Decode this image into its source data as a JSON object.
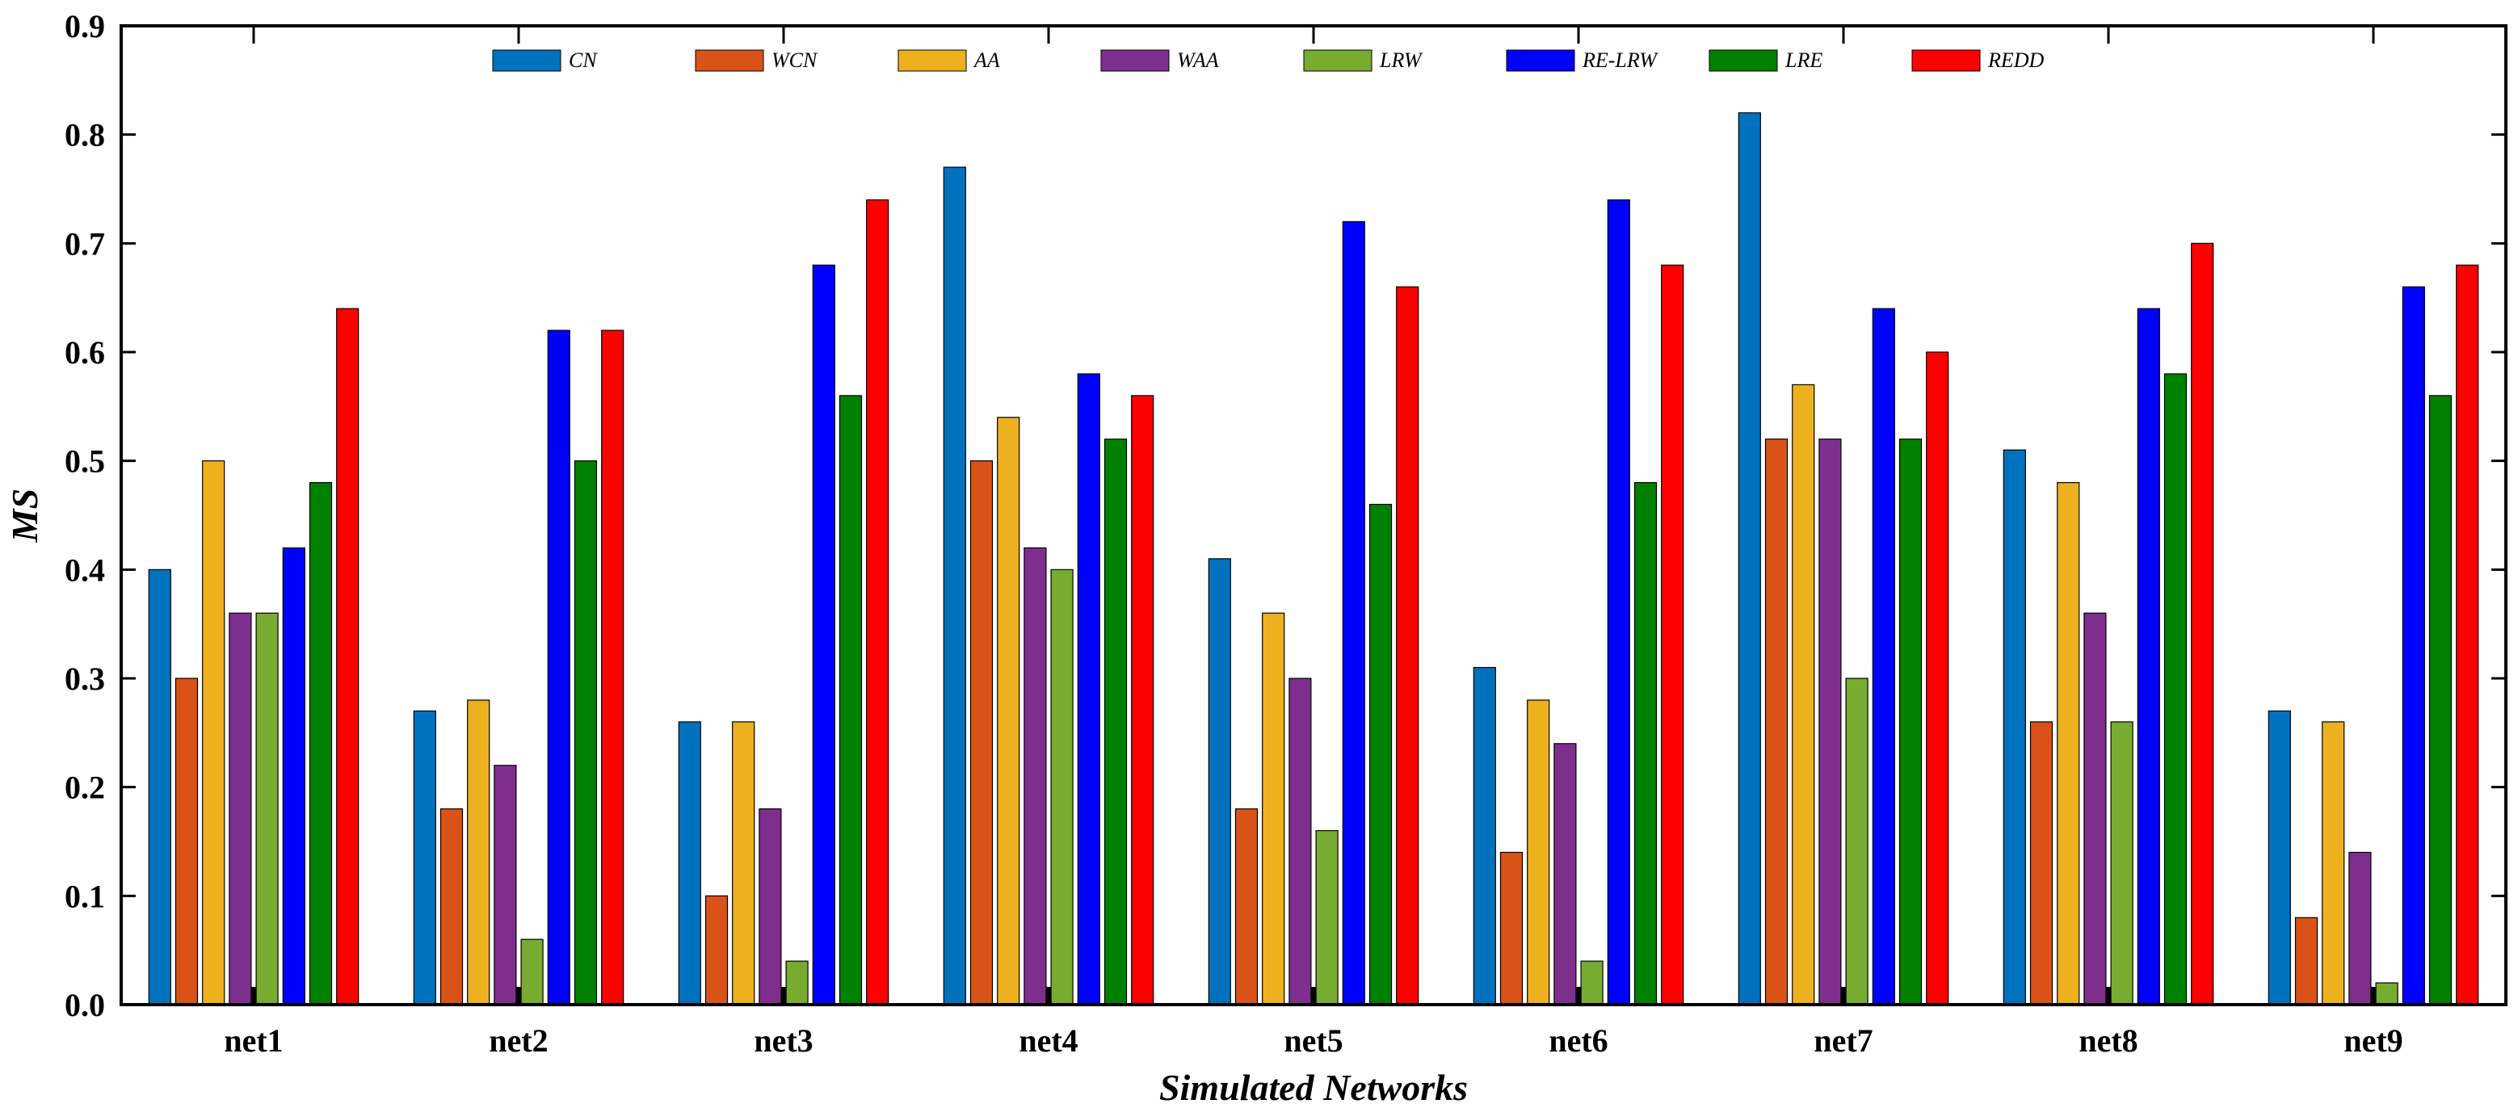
{
  "chart_data": {
    "type": "bar",
    "title": "",
    "xlabel": "Simulated Networks",
    "ylabel": "MS",
    "ylim": [
      0,
      0.9
    ],
    "yticks": [
      "0.0",
      "0.1",
      "0.2",
      "0.3",
      "0.4",
      "0.5",
      "0.6",
      "0.7",
      "0.8",
      "0.9"
    ],
    "legend_position": "top",
    "categories": [
      "net1",
      "net2",
      "net3",
      "net4",
      "net5",
      "net6",
      "net7",
      "net8",
      "net9"
    ],
    "series": [
      {
        "name": "CN",
        "color": "#0072BD",
        "values": [
          0.4,
          0.27,
          0.26,
          0.77,
          0.41,
          0.31,
          0.82,
          0.51,
          0.27
        ]
      },
      {
        "name": "WCN",
        "color": "#D95319",
        "values": [
          0.3,
          0.18,
          0.1,
          0.5,
          0.18,
          0.14,
          0.52,
          0.26,
          0.08
        ]
      },
      {
        "name": "AA",
        "color": "#EDB120",
        "values": [
          0.5,
          0.28,
          0.26,
          0.54,
          0.36,
          0.28,
          0.57,
          0.48,
          0.26
        ]
      },
      {
        "name": "WAA",
        "color": "#7E2F8E",
        "values": [
          0.36,
          0.22,
          0.18,
          0.42,
          0.3,
          0.24,
          0.52,
          0.36,
          0.14
        ]
      },
      {
        "name": "LRW",
        "color": "#77AC30",
        "values": [
          0.36,
          0.06,
          0.04,
          0.4,
          0.16,
          0.04,
          0.3,
          0.26,
          0.02
        ]
      },
      {
        "name": "RE-LRW",
        "color": "#0000FF",
        "values": [
          0.42,
          0.62,
          0.68,
          0.58,
          0.72,
          0.74,
          0.64,
          0.64,
          0.66
        ]
      },
      {
        "name": "LRE",
        "color": "#008000",
        "values": [
          0.48,
          0.5,
          0.56,
          0.52,
          0.46,
          0.48,
          0.52,
          0.58,
          0.56
        ]
      },
      {
        "name": "REDD",
        "color": "#FF0000",
        "values": [
          0.64,
          0.62,
          0.74,
          0.56,
          0.66,
          0.68,
          0.6,
          0.7,
          0.68
        ]
      }
    ]
  }
}
